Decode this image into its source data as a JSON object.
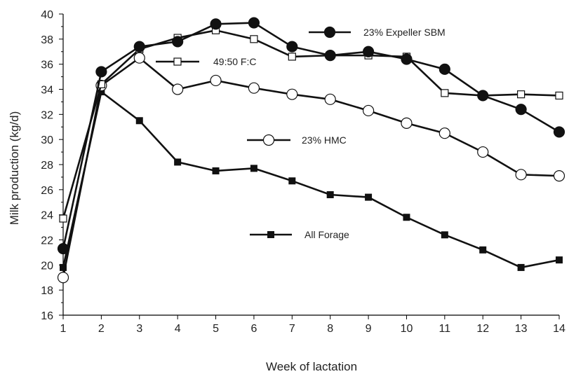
{
  "chart_data": {
    "type": "line",
    "xlabel": "Week of lactation",
    "ylabel": "Milk production (kg/d)",
    "x": [
      1,
      2,
      3,
      4,
      5,
      6,
      7,
      8,
      9,
      10,
      11,
      12,
      13,
      14
    ],
    "xlim": [
      1,
      14
    ],
    "ylim": [
      16,
      40
    ],
    "yticks": [
      16,
      18,
      20,
      22,
      24,
      26,
      28,
      30,
      32,
      34,
      36,
      38,
      40
    ],
    "grid": false,
    "series": [
      {
        "name": "23% Expeller SBM",
        "marker": "filled-circle",
        "values": [
          21.3,
          35.4,
          37.4,
          37.8,
          39.2,
          39.3,
          37.4,
          36.7,
          37.0,
          36.4,
          35.6,
          33.5,
          32.4,
          30.6
        ]
      },
      {
        "name": "49:50 F:C",
        "marker": "open-square",
        "values": [
          23.7,
          34.4,
          37.2,
          38.1,
          38.7,
          38.0,
          36.6,
          36.7,
          36.7,
          36.6,
          33.7,
          33.5,
          33.6,
          33.5
        ]
      },
      {
        "name": "23% HMC",
        "marker": "open-circle",
        "values": [
          19.0,
          34.3,
          36.5,
          34.0,
          34.7,
          34.1,
          33.6,
          33.2,
          32.3,
          31.3,
          30.5,
          29.0,
          27.2,
          27.1
        ]
      },
      {
        "name": "All Forage",
        "marker": "filled-square",
        "values": [
          19.8,
          33.8,
          31.5,
          28.2,
          27.5,
          27.7,
          26.7,
          25.6,
          25.4,
          23.8,
          22.4,
          21.2,
          19.8,
          20.4
        ]
      }
    ]
  }
}
